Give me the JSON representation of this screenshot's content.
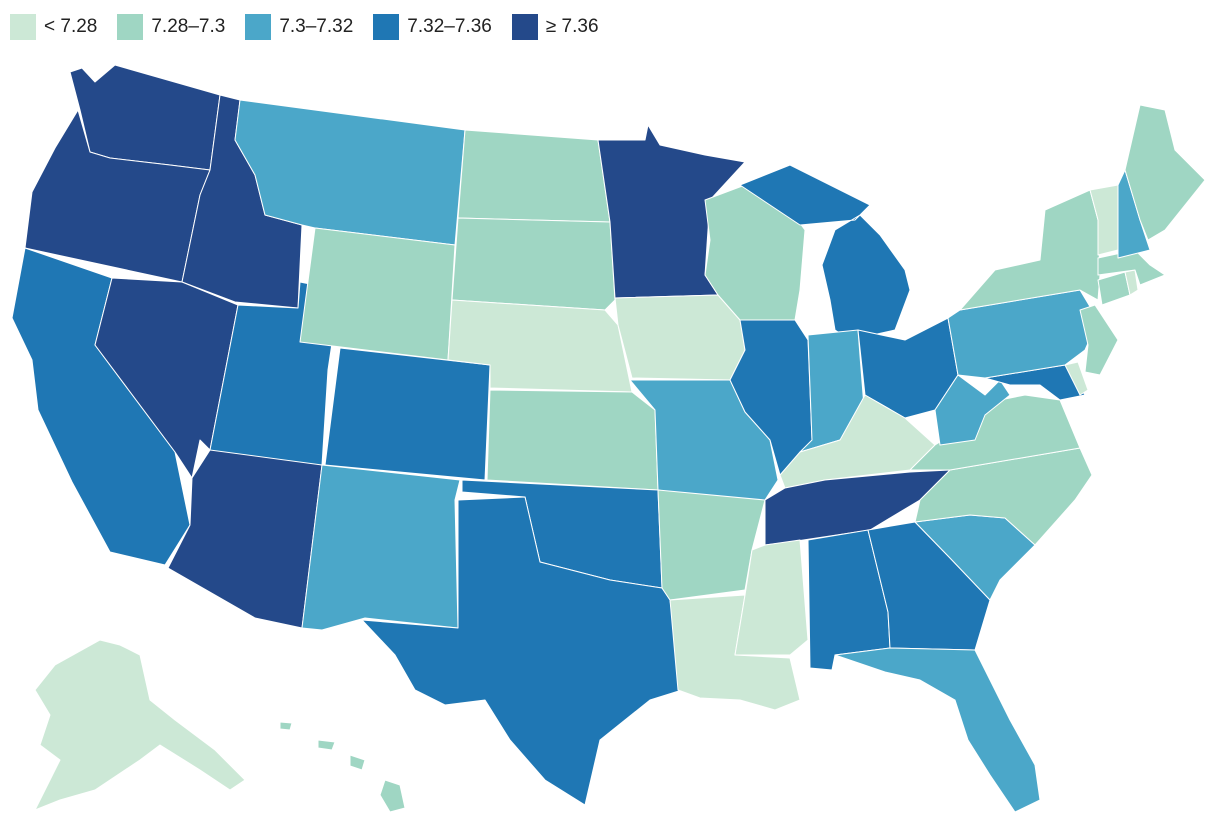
{
  "map": {
    "title": "",
    "legend": [
      {
        "label": "< 7.28",
        "color": "#cce8d6"
      },
      {
        "label": "7.28–7.3",
        "color": "#9fd6c3"
      },
      {
        "label": "7.3–7.32",
        "color": "#4ba7c9"
      },
      {
        "label": "7.32–7.36",
        "color": "#1f77b4"
      },
      {
        "label": "≥ 7.36",
        "color": "#24498a"
      }
    ],
    "regions": [
      {
        "name": "Washington",
        "bin": 4
      },
      {
        "name": "Oregon",
        "bin": 4
      },
      {
        "name": "California",
        "bin": 3
      },
      {
        "name": "Idaho",
        "bin": 4
      },
      {
        "name": "Nevada",
        "bin": 4
      },
      {
        "name": "Arizona",
        "bin": 4
      },
      {
        "name": "Utah",
        "bin": 3
      },
      {
        "name": "Montana",
        "bin": 2
      },
      {
        "name": "Wyoming",
        "bin": 1
      },
      {
        "name": "Colorado",
        "bin": 3
      },
      {
        "name": "New Mexico",
        "bin": 2
      },
      {
        "name": "North Dakota",
        "bin": 1
      },
      {
        "name": "South Dakota",
        "bin": 1
      },
      {
        "name": "Nebraska",
        "bin": 0
      },
      {
        "name": "Kansas",
        "bin": 1
      },
      {
        "name": "Oklahoma",
        "bin": 3
      },
      {
        "name": "Texas",
        "bin": 3
      },
      {
        "name": "Minnesota",
        "bin": 4
      },
      {
        "name": "Iowa",
        "bin": 0
      },
      {
        "name": "Missouri",
        "bin": 2
      },
      {
        "name": "Arkansas",
        "bin": 1
      },
      {
        "name": "Louisiana",
        "bin": 0
      },
      {
        "name": "Wisconsin",
        "bin": 1
      },
      {
        "name": "Illinois",
        "bin": 3
      },
      {
        "name": "Michigan",
        "bin": 3
      },
      {
        "name": "Indiana",
        "bin": 2
      },
      {
        "name": "Ohio",
        "bin": 3
      },
      {
        "name": "Kentucky",
        "bin": 0
      },
      {
        "name": "Tennessee",
        "bin": 4
      },
      {
        "name": "Mississippi",
        "bin": 0
      },
      {
        "name": "Alabama",
        "bin": 3
      },
      {
        "name": "Georgia",
        "bin": 3
      },
      {
        "name": "Florida",
        "bin": 2
      },
      {
        "name": "South Carolina",
        "bin": 2
      },
      {
        "name": "North Carolina",
        "bin": 1
      },
      {
        "name": "Virginia",
        "bin": 1
      },
      {
        "name": "West Virginia",
        "bin": 2
      },
      {
        "name": "Maryland",
        "bin": 3
      },
      {
        "name": "Delaware",
        "bin": 0
      },
      {
        "name": "Pennsylvania",
        "bin": 2
      },
      {
        "name": "New Jersey",
        "bin": 1
      },
      {
        "name": "New York",
        "bin": 1
      },
      {
        "name": "Connecticut",
        "bin": 1
      },
      {
        "name": "Rhode Island",
        "bin": 0
      },
      {
        "name": "Massachusetts",
        "bin": 1
      },
      {
        "name": "Vermont",
        "bin": 0
      },
      {
        "name": "New Hampshire",
        "bin": 2
      },
      {
        "name": "Maine",
        "bin": 1
      },
      {
        "name": "Alaska",
        "bin": 0
      },
      {
        "name": "Hawaii",
        "bin": 1
      }
    ]
  }
}
